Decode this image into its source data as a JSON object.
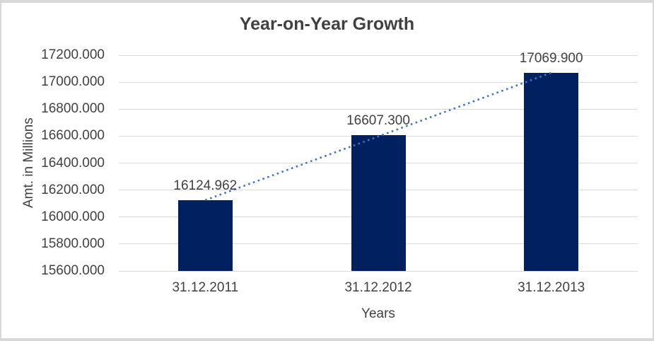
{
  "chart_data": {
    "type": "bar",
    "title": "Year-on-Year Growth",
    "xlabel": "Years",
    "ylabel": "Amt. in Millions",
    "categories": [
      "31.12.2011",
      "31.12.2012",
      "31.12.2013"
    ],
    "values": [
      16124.962,
      16607.3,
      17069.9
    ],
    "data_labels": [
      "16124.962",
      "16607.300",
      "17069.900"
    ],
    "y_ticks": [
      "17200.000",
      "17000.000",
      "16800.000",
      "16600.000",
      "16400.000",
      "16200.000",
      "16000.000",
      "15800.000",
      "15600.000"
    ],
    "ylim": [
      15600,
      17200
    ],
    "grid": true,
    "legend": "none",
    "trendline": {
      "style": "dotted",
      "connects": [
        "first-bar-top",
        "last-bar-top"
      ]
    },
    "colors": {
      "bar_fill": "#002060",
      "trendline": "#4472c4",
      "gridline": "#d9d9d9",
      "text": "#404040",
      "frame_border": "#d8d8d8",
      "background": "#ffffff"
    }
  }
}
